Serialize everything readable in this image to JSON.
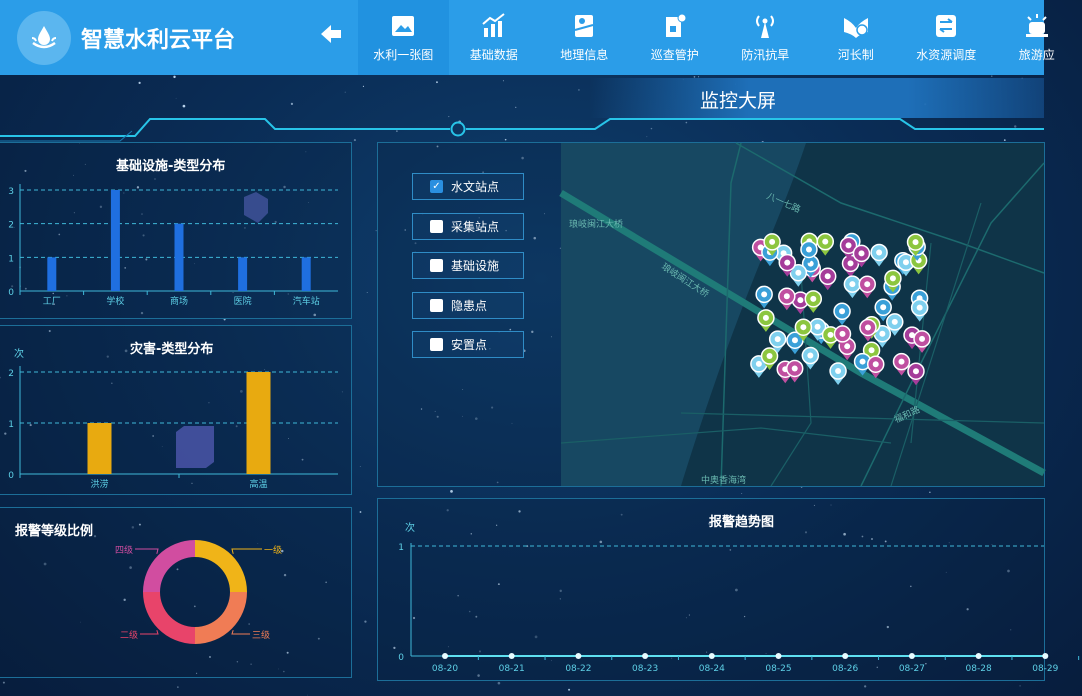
{
  "header": {
    "brand": "智慧水利云平台",
    "back_icon": "arrow-left-icon",
    "nav": [
      {
        "label": "水利一张图",
        "icon": "image-icon",
        "active": true
      },
      {
        "label": "基础数据",
        "icon": "bar-chart-icon"
      },
      {
        "label": "地理信息",
        "icon": "map-icon"
      },
      {
        "label": "巡查管护",
        "icon": "inspection-icon"
      },
      {
        "label": "防汛抗旱",
        "icon": "antenna-icon"
      },
      {
        "label": "河长制",
        "icon": "river-chief-icon"
      },
      {
        "label": "水资源调度",
        "icon": "transfer-icon"
      },
      {
        "label": "旅游应",
        "icon": "alarm-icon"
      }
    ]
  },
  "screen_title": "监控大屏",
  "layers": [
    {
      "label": "水文站点",
      "checked": true
    },
    {
      "label": "采集站点",
      "checked": false
    },
    {
      "label": "基础设施",
      "checked": false
    },
    {
      "label": "隐患点",
      "checked": false
    },
    {
      "label": "安置点",
      "checked": false
    }
  ],
  "map": {
    "labels": [
      "琅岐闽江大桥",
      "八一七路",
      "琅岐闽江大桥",
      "福和路",
      "中奥香海湾"
    ]
  },
  "chart_data": [
    {
      "type": "bar",
      "title": "基础设施-类型分布",
      "categories": [
        "工厂",
        "学校",
        "商场",
        "医院",
        "汽车站"
      ],
      "values": [
        1,
        3,
        2,
        1,
        1
      ],
      "ylim": [
        0,
        3
      ],
      "yticks": [
        "0",
        "1",
        "2",
        "3"
      ],
      "color": "#1f6fe0",
      "grid": true
    },
    {
      "type": "bar",
      "title": "灾害-类型分布",
      "ylabel": "次",
      "categories": [
        "洪涝",
        "高温"
      ],
      "values": [
        1,
        2
      ],
      "ylim": [
        0,
        2
      ],
      "yticks": [
        "0",
        "1",
        "2"
      ],
      "color": "#e8aa10",
      "grid": true
    },
    {
      "type": "pie",
      "title": "报警等级比例",
      "slices": [
        {
          "label": "一级",
          "value": 1,
          "color": "#f0b418"
        },
        {
          "label": "三级",
          "value": 1,
          "color": "#f07c55"
        },
        {
          "label": "二级",
          "value": 1,
          "color": "#e8446a"
        },
        {
          "label": "四级",
          "value": 1,
          "color": "#d14da0"
        }
      ]
    },
    {
      "type": "line",
      "title": "报警趋势图",
      "ylabel": "次",
      "x": [
        "08-20",
        "08-21",
        "08-22",
        "08-23",
        "08-24",
        "08-25",
        "08-26",
        "08-27",
        "08-28",
        "08-29"
      ],
      "values": [
        0,
        0,
        0,
        0,
        0,
        0,
        0,
        0,
        0,
        0
      ],
      "ylim": [
        0,
        1
      ],
      "yticks": [
        "0",
        "1"
      ],
      "color": "#5fe0f0",
      "grid": true
    }
  ]
}
